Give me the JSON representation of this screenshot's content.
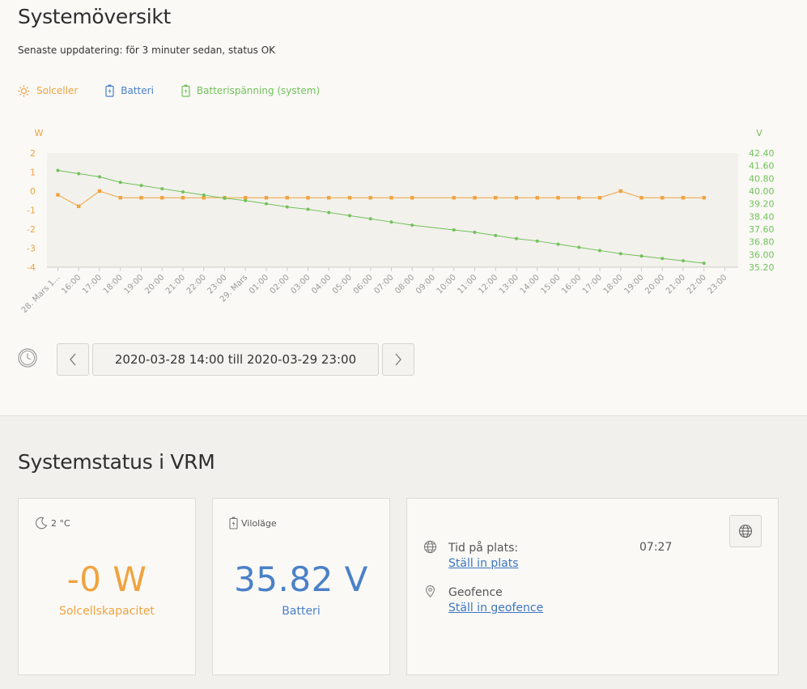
{
  "overview": {
    "title": "Systemöversikt",
    "status_line": "Senaste uppdatering: för 3 minuter sedan, status OK",
    "legend": [
      {
        "label": "Solceller",
        "icon": "sun-icon",
        "color": "#f0a33f"
      },
      {
        "label": "Batteri",
        "icon": "battery-icon",
        "color": "#4a80c8"
      },
      {
        "label": "Batterispänning (system)",
        "icon": "battery-charge-icon",
        "color": "#72c15a"
      }
    ],
    "range_label": "2020-03-28 14:00 till 2020-03-29 23:00"
  },
  "chart_data": {
    "type": "line",
    "left_axis_unit": "W",
    "right_axis_unit": "V",
    "left_ticks": [
      "2",
      "1",
      "0",
      "-1",
      "-2",
      "-3",
      "-4"
    ],
    "right_ticks": [
      "42.40",
      "41.60",
      "40.80",
      "40.00",
      "39.20",
      "38.40",
      "37.60",
      "36.80",
      "36.00",
      "35.20"
    ],
    "x_labels": [
      "28. Mars 1...",
      "16:00",
      "17:00",
      "18:00",
      "19:00",
      "20:00",
      "21:00",
      "22:00",
      "23:00",
      "29. Mars",
      "01:00",
      "02:00",
      "03:00",
      "04:00",
      "05:00",
      "06:00",
      "07:00",
      "08:00",
      "09:00",
      "10:00",
      "11:00",
      "12:00",
      "13:00",
      "14:00",
      "15:00",
      "16:00",
      "17:00",
      "18:00",
      "19:00",
      "20:00",
      "21:00",
      "22:00",
      "23:00"
    ],
    "ylim_left": [
      -4,
      2
    ],
    "ylim_right": [
      35.2,
      42.4
    ],
    "series": [
      {
        "name": "Solceller",
        "axis": "left",
        "color": "#f0a33f",
        "marker": "square",
        "values": [
          -0.2,
          -0.8,
          0.0,
          -0.35,
          -0.35,
          -0.35,
          -0.35,
          -0.35,
          -0.35,
          -0.35,
          -0.35,
          -0.35,
          -0.35,
          -0.35,
          -0.35,
          -0.35,
          -0.35,
          -0.35,
          null,
          -0.35,
          -0.35,
          -0.35,
          -0.35,
          -0.35,
          -0.35,
          -0.35,
          -0.35,
          0.0,
          -0.35,
          -0.35,
          -0.35,
          -0.35
        ]
      },
      {
        "name": "Batterispänning (system)",
        "axis": "right",
        "color": "#72c15a",
        "marker": "circle",
        "values": [
          41.3,
          41.1,
          40.9,
          40.55,
          40.35,
          40.15,
          39.95,
          39.75,
          39.55,
          39.4,
          39.2,
          39.0,
          38.85,
          38.65,
          38.45,
          38.25,
          38.05,
          37.85,
          null,
          37.55,
          37.4,
          37.2,
          37.0,
          36.85,
          36.65,
          36.45,
          36.25,
          36.05,
          35.9,
          35.75,
          35.6,
          35.45
        ]
      }
    ]
  },
  "vrm": {
    "title": "Systemstatus i VRM",
    "solar_card": {
      "header": "2 °C",
      "header_icon": "moon-icon",
      "value": "-0 W",
      "label": "Solcellskapacitet"
    },
    "battery_card": {
      "header": "Viloläge",
      "header_icon": "battery-charge-icon",
      "value": "35.82 V",
      "label": "Batteri"
    },
    "location_card": {
      "time_label": "Tid på plats:",
      "time_value": "07:27",
      "set_location": "Ställ in plats",
      "geofence_label": "Geofence",
      "set_geofence": "Ställ in geofence"
    }
  }
}
